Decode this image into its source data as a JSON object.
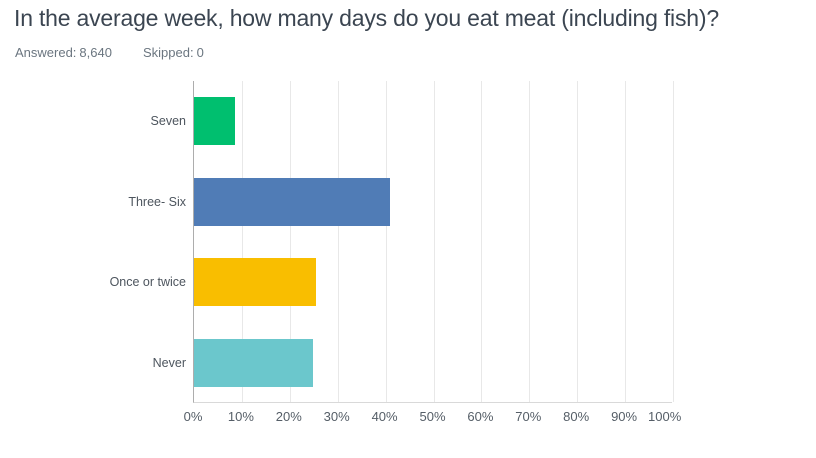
{
  "header": {
    "title": "In the average week, how many days do you eat meat (including fish)?",
    "answered_label": "Answered:",
    "answered_value": "8,640",
    "skipped_label": "Skipped:",
    "skipped_value": "0"
  },
  "chart_data": {
    "type": "bar",
    "orientation": "horizontal",
    "categories": [
      "Seven",
      "Three- Six",
      "Once or twice",
      "Never"
    ],
    "values": [
      8.6,
      41.0,
      25.5,
      24.8
    ],
    "unit": "%",
    "colors": [
      "#00BF6F",
      "#507CB6",
      "#F9BE00",
      "#6BC7CC"
    ],
    "x_ticks": [
      "0%",
      "10%",
      "20%",
      "30%",
      "40%",
      "50%",
      "60%",
      "70%",
      "80%",
      "90%",
      "100%"
    ],
    "xlim": [
      0,
      100
    ],
    "grid": "vertical",
    "legend": "none",
    "title": "In the average week, how many days do you eat meat (including fish)?"
  },
  "style": {
    "axis_line_color": "#ADADAD",
    "gridline_color": "#E8E8E8",
    "title_color": "#3B4551",
    "label_color": "#4D555E"
  }
}
